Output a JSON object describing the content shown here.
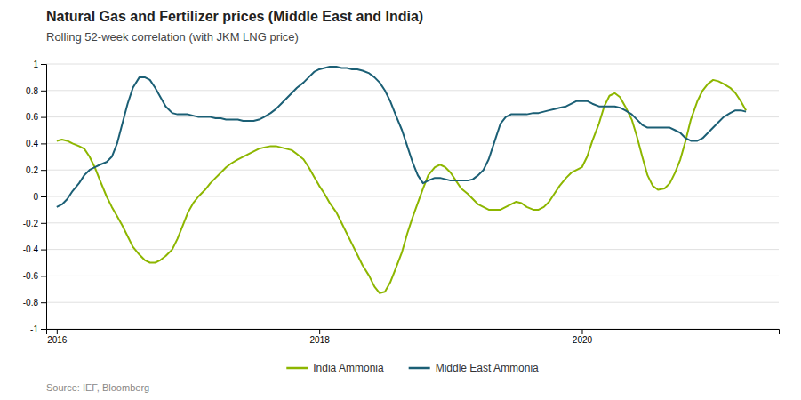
{
  "chart_data": {
    "type": "line",
    "title": "Natural Gas and Fertilizer prices (Middle East and India)",
    "subtitle": "Rolling 52-week correlation (with JKM LNG price)",
    "annotations": [
      "Source: IEF, Bloomberg"
    ],
    "x": [
      2016.0,
      2016.04,
      2016.08,
      2016.12,
      2016.17,
      2016.21,
      2016.25,
      2016.29,
      2016.33,
      2016.38,
      2016.42,
      2016.46,
      2016.5,
      2016.54,
      2016.58,
      2016.63,
      2016.67,
      2016.71,
      2016.75,
      2016.79,
      2016.83,
      2016.88,
      2016.92,
      2016.96,
      2017.0,
      2017.04,
      2017.08,
      2017.13,
      2017.17,
      2017.21,
      2017.25,
      2017.29,
      2017.33,
      2017.38,
      2017.42,
      2017.46,
      2017.5,
      2017.54,
      2017.58,
      2017.63,
      2017.67,
      2017.71,
      2017.75,
      2017.79,
      2017.83,
      2017.88,
      2017.92,
      2017.96,
      2018.0,
      2018.04,
      2018.08,
      2018.13,
      2018.17,
      2018.21,
      2018.25,
      2018.29,
      2018.33,
      2018.38,
      2018.42,
      2018.46,
      2018.5,
      2018.54,
      2018.58,
      2018.63,
      2018.67,
      2018.71,
      2018.75,
      2018.79,
      2018.83,
      2018.88,
      2018.92,
      2018.96,
      2019.0,
      2019.04,
      2019.08,
      2019.13,
      2019.17,
      2019.21,
      2019.25,
      2019.29,
      2019.33,
      2019.38,
      2019.42,
      2019.46,
      2019.5,
      2019.54,
      2019.58,
      2019.63,
      2019.67,
      2019.71,
      2019.75,
      2019.79,
      2019.83,
      2019.88,
      2019.92,
      2019.96,
      2020.0,
      2020.04,
      2020.08,
      2020.13,
      2020.17,
      2020.21,
      2020.25,
      2020.29,
      2020.33,
      2020.38,
      2020.42,
      2020.46,
      2020.5,
      2020.54,
      2020.58,
      2020.63,
      2020.67,
      2020.71,
      2020.75,
      2020.79,
      2020.83,
      2020.88,
      2020.92,
      2020.96,
      2021.0,
      2021.04,
      2021.08,
      2021.13,
      2021.17,
      2021.21,
      2021.25
    ],
    "series": [
      {
        "name": "India Ammonia",
        "color": "#8DB600",
        "values": [
          0.42,
          0.43,
          0.42,
          0.4,
          0.38,
          0.36,
          0.3,
          0.22,
          0.12,
          0.0,
          -0.08,
          -0.15,
          -0.22,
          -0.3,
          -0.38,
          -0.44,
          -0.48,
          -0.5,
          -0.5,
          -0.48,
          -0.45,
          -0.4,
          -0.32,
          -0.22,
          -0.12,
          -0.05,
          0.0,
          0.05,
          0.1,
          0.14,
          0.18,
          0.22,
          0.25,
          0.28,
          0.3,
          0.32,
          0.34,
          0.36,
          0.37,
          0.38,
          0.38,
          0.37,
          0.36,
          0.35,
          0.32,
          0.28,
          0.22,
          0.15,
          0.08,
          0.02,
          -0.05,
          -0.12,
          -0.2,
          -0.28,
          -0.36,
          -0.44,
          -0.52,
          -0.6,
          -0.68,
          -0.73,
          -0.72,
          -0.65,
          -0.55,
          -0.42,
          -0.28,
          -0.16,
          -0.05,
          0.06,
          0.16,
          0.22,
          0.24,
          0.22,
          0.18,
          0.12,
          0.06,
          0.02,
          -0.02,
          -0.06,
          -0.08,
          -0.1,
          -0.1,
          -0.1,
          -0.08,
          -0.06,
          -0.04,
          -0.05,
          -0.08,
          -0.1,
          -0.1,
          -0.08,
          -0.04,
          0.02,
          0.08,
          0.14,
          0.18,
          0.2,
          0.22,
          0.3,
          0.42,
          0.55,
          0.68,
          0.76,
          0.78,
          0.75,
          0.68,
          0.58,
          0.45,
          0.3,
          0.16,
          0.08,
          0.05,
          0.06,
          0.1,
          0.18,
          0.28,
          0.42,
          0.58,
          0.72,
          0.8,
          0.85,
          0.88,
          0.87,
          0.85,
          0.82,
          0.78,
          0.72,
          0.65
        ]
      },
      {
        "name": "Middle East Ammonia",
        "color": "#1B5F75",
        "values": [
          -0.08,
          -0.06,
          -0.02,
          0.04,
          0.1,
          0.16,
          0.2,
          0.22,
          0.24,
          0.26,
          0.3,
          0.4,
          0.55,
          0.7,
          0.82,
          0.9,
          0.9,
          0.88,
          0.82,
          0.75,
          0.68,
          0.63,
          0.62,
          0.62,
          0.62,
          0.61,
          0.6,
          0.6,
          0.6,
          0.59,
          0.59,
          0.58,
          0.58,
          0.58,
          0.57,
          0.57,
          0.57,
          0.58,
          0.6,
          0.63,
          0.66,
          0.7,
          0.74,
          0.78,
          0.82,
          0.86,
          0.9,
          0.94,
          0.96,
          0.97,
          0.98,
          0.98,
          0.97,
          0.97,
          0.96,
          0.96,
          0.95,
          0.93,
          0.9,
          0.86,
          0.8,
          0.72,
          0.62,
          0.5,
          0.38,
          0.26,
          0.16,
          0.1,
          0.12,
          0.14,
          0.14,
          0.13,
          0.12,
          0.12,
          0.12,
          0.12,
          0.13,
          0.16,
          0.2,
          0.28,
          0.4,
          0.55,
          0.6,
          0.62,
          0.62,
          0.62,
          0.62,
          0.63,
          0.63,
          0.64,
          0.65,
          0.66,
          0.67,
          0.68,
          0.7,
          0.72,
          0.72,
          0.72,
          0.7,
          0.68,
          0.68,
          0.68,
          0.68,
          0.67,
          0.65,
          0.62,
          0.58,
          0.54,
          0.52,
          0.52,
          0.52,
          0.52,
          0.52,
          0.5,
          0.48,
          0.44,
          0.42,
          0.42,
          0.44,
          0.48,
          0.52,
          0.56,
          0.6,
          0.63,
          0.65,
          0.65,
          0.64
        ]
      }
    ],
    "xlim": [
      2015.92,
      2021.5
    ],
    "xticks": [
      2016,
      2018,
      2020
    ],
    "ylim": [
      -1,
      1
    ],
    "yticks": [
      -1,
      -0.8,
      -0.6,
      -0.4,
      -0.2,
      0,
      0.2,
      0.4,
      0.6,
      0.8,
      1
    ],
    "grid": true,
    "legend": "bottom"
  }
}
